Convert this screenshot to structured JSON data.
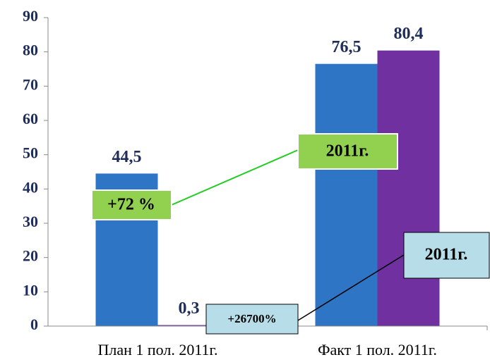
{
  "chart_data": {
    "type": "bar",
    "categories": [
      "План 1 пол. 2011г.",
      "Факт 1 пол. 2011г."
    ],
    "series": [
      {
        "color": "#2e75c6",
        "values": [
          44.5,
          76.5
        ],
        "value_labels": [
          "44,5",
          "76,5"
        ]
      },
      {
        "color": "#7030a0",
        "values": [
          0.3,
          80.4
        ],
        "value_labels": [
          "0,3",
          "80,4"
        ]
      }
    ],
    "ylim": [
      0,
      90
    ],
    "yticks": [
      0,
      10,
      20,
      30,
      40,
      50,
      60,
      70,
      80,
      90
    ],
    "annotations": [
      "+72 %",
      "2011г.",
      "+26700%",
      "2011г."
    ]
  }
}
